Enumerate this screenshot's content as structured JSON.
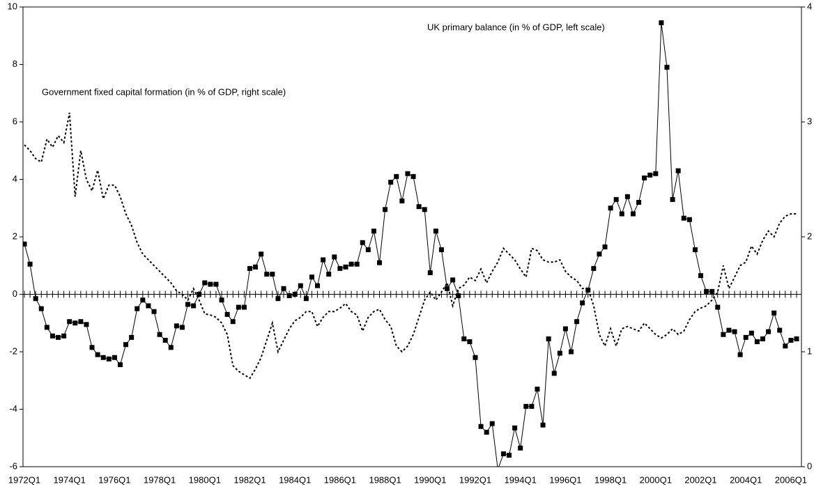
{
  "chart_data": {
    "type": "line",
    "categories": [
      "1972Q1",
      null,
      null,
      null,
      null,
      null,
      null,
      null,
      "1974Q1",
      null,
      null,
      null,
      null,
      null,
      null,
      null,
      "1976Q1",
      null,
      null,
      null,
      null,
      null,
      null,
      null,
      "1978Q1",
      null,
      null,
      null,
      null,
      null,
      null,
      null,
      "1980Q1",
      null,
      null,
      null,
      null,
      null,
      null,
      null,
      "1982Q1",
      null,
      null,
      null,
      null,
      null,
      null,
      null,
      "1984Q1",
      null,
      null,
      null,
      null,
      null,
      null,
      null,
      "1986Q1",
      null,
      null,
      null,
      null,
      null,
      null,
      null,
      "1988Q1",
      null,
      null,
      null,
      null,
      null,
      null,
      null,
      "1990Q1",
      null,
      null,
      null,
      null,
      null,
      null,
      null,
      "1992Q1",
      null,
      null,
      null,
      null,
      null,
      null,
      null,
      "1994Q1",
      null,
      null,
      null,
      null,
      null,
      null,
      null,
      "1996Q1",
      null,
      null,
      null,
      null,
      null,
      null,
      null,
      "1998Q1",
      null,
      null,
      null,
      null,
      null,
      null,
      null,
      "2000Q1",
      null,
      null,
      null,
      null,
      null,
      null,
      null,
      "2002Q1",
      null,
      null,
      null,
      null,
      null,
      null,
      null,
      "2004Q1",
      null,
      null,
      null,
      null,
      null,
      null,
      null,
      "2006Q1",
      null
    ],
    "series": [
      {
        "name": "UK primary balance (in % of GDP, left scale)",
        "color": "#000000",
        "line_style": "solid",
        "marker": "square",
        "values": [
          1.75,
          1.05,
          -0.15,
          -0.5,
          -1.15,
          -1.45,
          -1.5,
          -1.45,
          -0.95,
          -1.0,
          -0.95,
          -1.05,
          -1.85,
          -2.1,
          -2.2,
          -2.25,
          -2.2,
          -2.45,
          -1.75,
          -1.5,
          -0.5,
          -0.2,
          -0.4,
          -0.6,
          -1.4,
          -1.6,
          -1.85,
          -1.1,
          -1.15,
          -0.35,
          -0.4,
          0.0,
          0.4,
          0.35,
          0.35,
          -0.2,
          -0.7,
          -0.95,
          -0.45,
          -0.45,
          0.9,
          0.95,
          1.4,
          0.7,
          0.7,
          -0.15,
          0.2,
          -0.05,
          0.0,
          0.3,
          -0.15,
          0.6,
          0.3,
          1.2,
          0.7,
          1.3,
          0.9,
          0.95,
          1.05,
          1.05,
          1.8,
          1.55,
          2.2,
          1.1,
          2.95,
          3.9,
          4.1,
          3.25,
          4.2,
          4.1,
          3.05,
          2.95,
          0.75,
          2.2,
          1.55,
          0.2,
          0.5,
          -0.05,
          -1.55,
          -1.65,
          -2.2,
          -4.6,
          -4.8,
          -4.5,
          -6.1,
          -5.55,
          -5.6,
          -4.65,
          -5.35,
          -3.9,
          -3.9,
          -3.3,
          -4.55,
          -1.55,
          -2.75,
          -2.05,
          -1.2,
          -2.0,
          -0.95,
          -0.3,
          0.15,
          0.9,
          1.4,
          1.65,
          3.0,
          3.3,
          2.8,
          3.4,
          2.8,
          3.2,
          4.05,
          4.15,
          4.2,
          9.45,
          7.9,
          3.3,
          4.3,
          2.65,
          2.6,
          1.55,
          0.65,
          0.1,
          0.1,
          -0.45,
          -1.4,
          -1.25,
          -1.3,
          -2.1,
          -1.5,
          -1.35,
          -1.65,
          -1.55,
          -1.3,
          -0.65,
          -1.25,
          -1.8,
          -1.6,
          -1.55
        ]
      },
      {
        "name": "Government fixed capital formation (in % of GDP, right scale)",
        "color": "#000000",
        "line_style": "dotted",
        "marker": null,
        "axis": "y2",
        "values": [
          2.8,
          2.75,
          2.68,
          2.65,
          2.85,
          2.78,
          2.88,
          2.82,
          3.08,
          2.35,
          2.75,
          2.5,
          2.4,
          2.58,
          2.33,
          2.45,
          2.45,
          2.35,
          2.2,
          2.1,
          1.95,
          1.85,
          1.8,
          1.75,
          1.7,
          1.65,
          1.6,
          1.53,
          1.5,
          1.45,
          1.55,
          1.45,
          1.33,
          1.32,
          1.3,
          1.25,
          1.15,
          0.88,
          0.83,
          0.8,
          0.77,
          0.85,
          0.95,
          1.1,
          1.25,
          1.0,
          1.1,
          1.2,
          1.27,
          1.3,
          1.35,
          1.35,
          1.22,
          1.3,
          1.35,
          1.35,
          1.38,
          1.42,
          1.35,
          1.32,
          1.18,
          1.3,
          1.35,
          1.37,
          1.28,
          1.22,
          1.05,
          1.0,
          1.05,
          1.15,
          1.3,
          1.45,
          1.52,
          1.45,
          1.52,
          1.6,
          1.4,
          1.55,
          1.58,
          1.65,
          1.62,
          1.72,
          1.6,
          1.7,
          1.78,
          1.9,
          1.85,
          1.8,
          1.72,
          1.65,
          1.9,
          1.88,
          1.8,
          1.78,
          1.78,
          1.8,
          1.7,
          1.65,
          1.62,
          1.55,
          1.55,
          1.4,
          1.15,
          1.05,
          1.2,
          1.05,
          1.2,
          1.22,
          1.2,
          1.18,
          1.25,
          1.2,
          1.15,
          1.12,
          1.15,
          1.2,
          1.15,
          1.18,
          1.28,
          1.35,
          1.38,
          1.4,
          1.45,
          1.52,
          1.75,
          1.55,
          1.65,
          1.75,
          1.78,
          1.92,
          1.85,
          1.97,
          2.05,
          2.0,
          2.12,
          2.18,
          2.2,
          2.2
        ]
      }
    ],
    "ylim": [
      -6,
      10
    ],
    "yticks": [
      -6,
      -4,
      -2,
      0,
      2,
      4,
      6,
      8,
      10
    ],
    "y2lim": [
      0,
      4
    ],
    "y2ticks": [
      0,
      1,
      2,
      3,
      4
    ],
    "grid": false
  }
}
